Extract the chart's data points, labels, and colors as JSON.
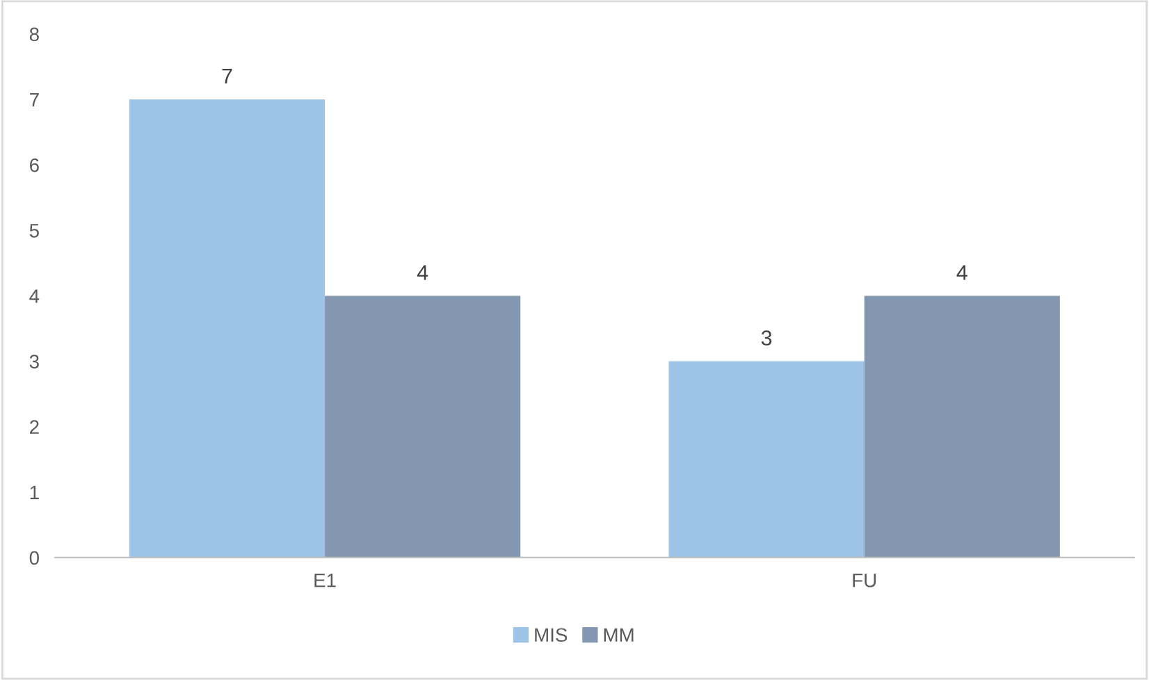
{
  "chart_data": {
    "type": "bar",
    "categories": [
      "E1",
      "FU"
    ],
    "series": [
      {
        "name": "MIS",
        "color": "#9dc3e6",
        "values": [
          7,
          3
        ]
      },
      {
        "name": "MM",
        "color": "#8497b0",
        "values": [
          4,
          4
        ]
      }
    ],
    "ylim": [
      0,
      8
    ],
    "yticks": [
      0,
      1,
      2,
      3,
      4,
      5,
      6,
      7,
      8
    ],
    "grid": false,
    "legend": "bottom",
    "data_labels": true
  }
}
